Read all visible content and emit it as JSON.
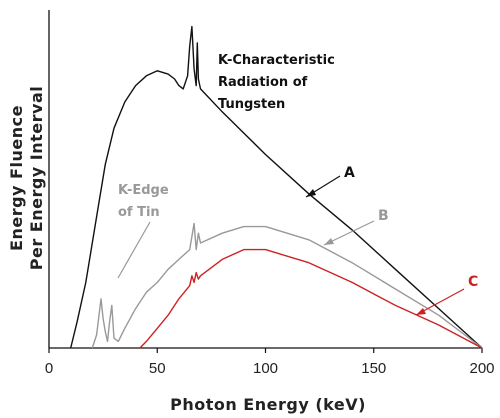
{
  "chart_data": {
    "type": "line",
    "title": "",
    "xlabel": "Photon Energy (keV)",
    "ylabel_line1": "Energy Fluence",
    "ylabel_line2": "Per Energy Interval",
    "xlim": [
      0,
      200
    ],
    "ylim": [
      0,
      1
    ],
    "x_ticks": [
      0,
      50,
      100,
      150,
      200
    ],
    "y_ticks": [],
    "grid": false,
    "series": [
      {
        "name": "A",
        "color": "#111111",
        "points": [
          [
            10,
            0.0
          ],
          [
            13,
            0.08
          ],
          [
            17,
            0.2
          ],
          [
            22,
            0.4
          ],
          [
            26,
            0.56
          ],
          [
            30,
            0.67
          ],
          [
            35,
            0.75
          ],
          [
            40,
            0.8
          ],
          [
            45,
            0.83
          ],
          [
            50,
            0.845
          ],
          [
            55,
            0.835
          ],
          [
            58,
            0.82
          ],
          [
            60,
            0.8
          ],
          [
            62,
            0.79
          ],
          [
            64,
            0.83
          ],
          [
            65,
            0.92
          ],
          [
            66,
            0.98
          ],
          [
            67,
            0.85
          ],
          [
            68,
            0.8
          ],
          [
            68.5,
            0.93
          ],
          [
            69,
            0.82
          ],
          [
            70,
            0.79
          ],
          [
            80,
            0.72
          ],
          [
            100,
            0.59
          ],
          [
            120,
            0.47
          ],
          [
            140,
            0.36
          ],
          [
            160,
            0.24
          ],
          [
            180,
            0.12
          ],
          [
            200,
            0.0
          ]
        ]
      },
      {
        "name": "B",
        "color": "#999999",
        "points": [
          [
            20,
            0.0
          ],
          [
            22,
            0.04
          ],
          [
            24,
            0.15
          ],
          [
            25,
            0.09
          ],
          [
            26,
            0.05
          ],
          [
            27,
            0.02
          ],
          [
            28,
            0.08
          ],
          [
            29,
            0.13
          ],
          [
            30,
            0.03
          ],
          [
            32,
            0.02
          ],
          [
            35,
            0.06
          ],
          [
            40,
            0.12
          ],
          [
            45,
            0.17
          ],
          [
            50,
            0.2
          ],
          [
            55,
            0.24
          ],
          [
            60,
            0.27
          ],
          [
            65,
            0.3
          ],
          [
            66,
            0.34
          ],
          [
            67,
            0.38
          ],
          [
            68,
            0.3
          ],
          [
            69,
            0.35
          ],
          [
            70,
            0.32
          ],
          [
            80,
            0.35
          ],
          [
            90,
            0.37
          ],
          [
            100,
            0.37
          ],
          [
            120,
            0.33
          ],
          [
            140,
            0.26
          ],
          [
            160,
            0.18
          ],
          [
            180,
            0.1
          ],
          [
            200,
            0.0
          ]
        ]
      },
      {
        "name": "C",
        "color": "#cc2222",
        "points": [
          [
            42,
            0.0
          ],
          [
            45,
            0.02
          ],
          [
            50,
            0.06
          ],
          [
            55,
            0.1
          ],
          [
            60,
            0.15
          ],
          [
            65,
            0.19
          ],
          [
            66,
            0.22
          ],
          [
            67,
            0.2
          ],
          [
            68,
            0.23
          ],
          [
            69,
            0.21
          ],
          [
            70,
            0.22
          ],
          [
            80,
            0.27
          ],
          [
            90,
            0.3
          ],
          [
            100,
            0.3
          ],
          [
            120,
            0.26
          ],
          [
            140,
            0.2
          ],
          [
            160,
            0.13
          ],
          [
            180,
            0.07
          ],
          [
            200,
            0.0
          ]
        ]
      }
    ],
    "annotations": [
      {
        "lines": [
          "K-Characteristic",
          "Radiation of",
          "Tungsten"
        ],
        "color": "#111111"
      },
      {
        "lines": [
          "K-Edge",
          "of Tin"
        ],
        "color": "#999999"
      }
    ]
  }
}
